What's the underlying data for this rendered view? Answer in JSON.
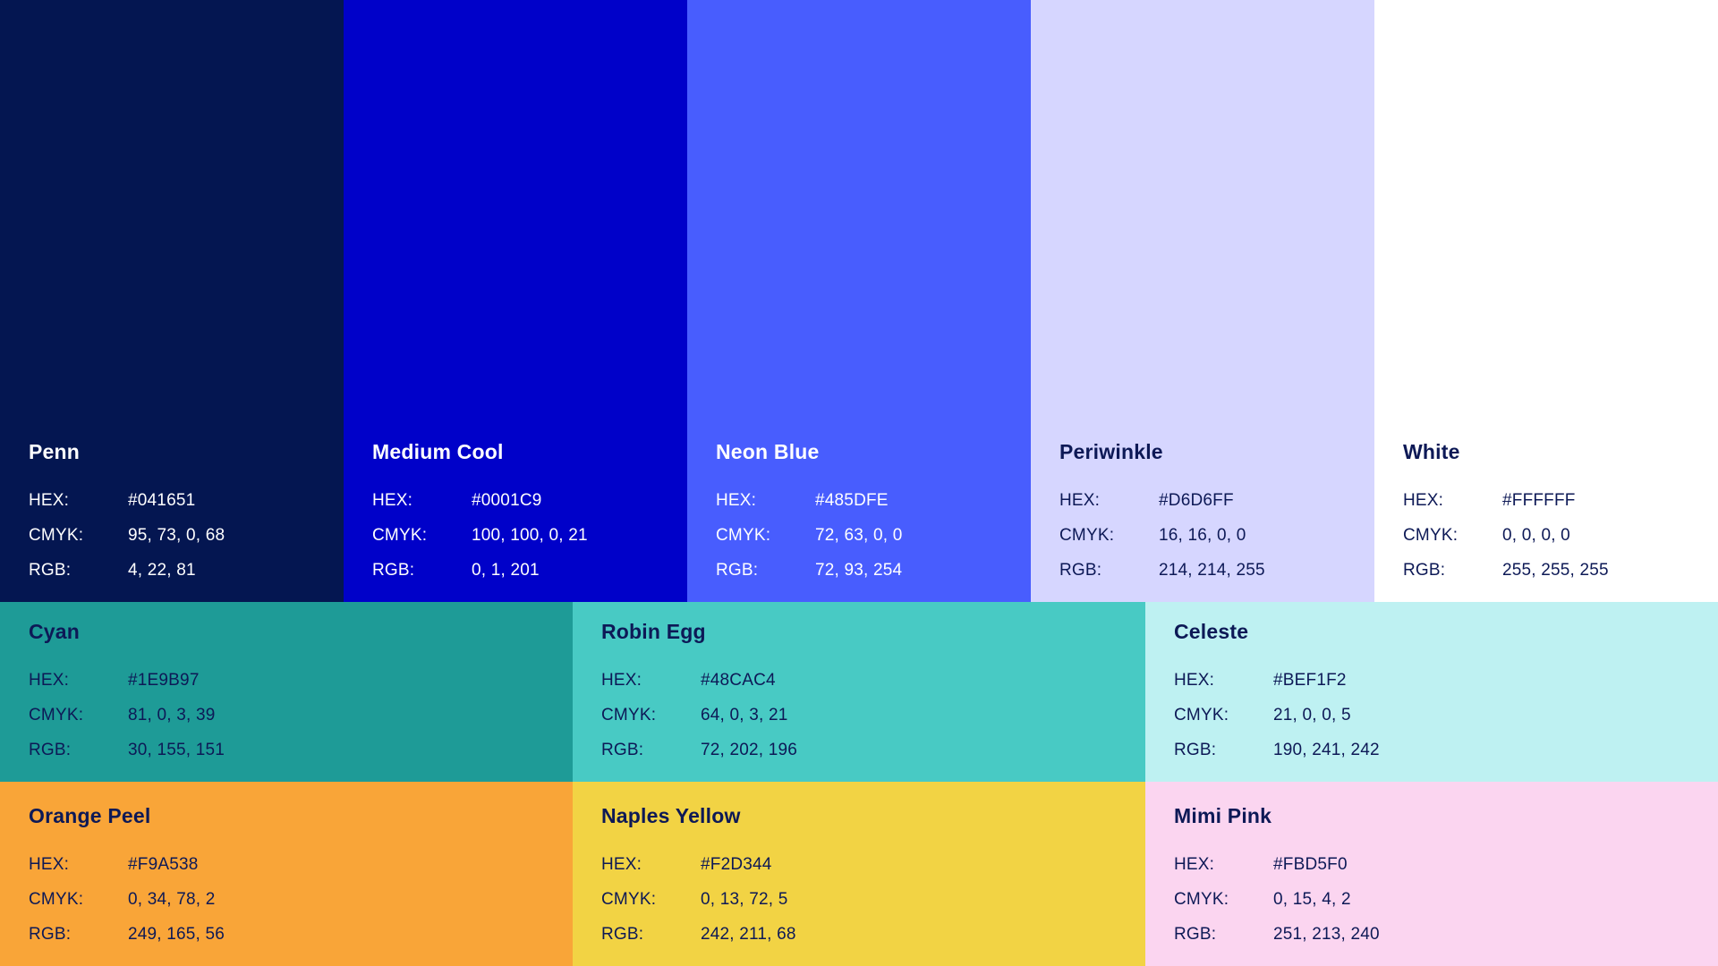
{
  "labels": {
    "hex": "HEX:",
    "cmyk": "CMYK:",
    "rgb": "RGB:"
  },
  "rows": [
    {
      "tiles": [
        {
          "name": "Penn",
          "hex": "#041651",
          "cmyk": "95, 73, 0, 68",
          "rgb": "4, 22, 81",
          "bg": "#041651",
          "text": "#FFFFFF"
        },
        {
          "name": "Medium Cool",
          "hex": "#0001C9",
          "cmyk": "100, 100, 0, 21",
          "rgb": "0, 1, 201",
          "bg": "#0001C9",
          "text": "#FFFFFF"
        },
        {
          "name": "Neon Blue",
          "hex": "#485DFE",
          "cmyk": "72, 63, 0, 0",
          "rgb": "72, 93, 254",
          "bg": "#485DFE",
          "text": "#FFFFFF"
        },
        {
          "name": "Periwinkle",
          "hex": "#D6D6FF",
          "cmyk": "16, 16, 0, 0",
          "rgb": "214, 214, 255",
          "bg": "#D6D6FF",
          "text": "#0D1956"
        },
        {
          "name": "White",
          "hex": "#FFFFFF",
          "cmyk": "0, 0, 0, 0",
          "rgb": "255, 255, 255",
          "bg": "#FFFFFF",
          "text": "#0D1956"
        }
      ]
    },
    {
      "tiles": [
        {
          "name": "Cyan",
          "hex": "#1E9B97",
          "cmyk": "81, 0, 3, 39",
          "rgb": "30, 155, 151",
          "bg": "#1E9B97",
          "text": "#0D1956"
        },
        {
          "name": "Robin Egg",
          "hex": "#48CAC4",
          "cmyk": "64, 0, 3, 21",
          "rgb": "72, 202, 196",
          "bg": "#48CAC4",
          "text": "#0D1956"
        },
        {
          "name": "Celeste",
          "hex": "#BEF1F2",
          "cmyk": "21, 0, 0, 5",
          "rgb": "190, 241, 242",
          "bg": "#BEF1F2",
          "text": "#0D1956"
        }
      ]
    },
    {
      "tiles": [
        {
          "name": "Orange Peel",
          "hex": "#F9A538",
          "cmyk": "0, 34, 78, 2",
          "rgb": "249, 165, 56",
          "bg": "#F9A538",
          "text": "#0D1956"
        },
        {
          "name": "Naples Yellow",
          "hex": "#F2D344",
          "cmyk": "0, 13, 72, 5",
          "rgb": "242, 211, 68",
          "bg": "#F2D344",
          "text": "#0D1956"
        },
        {
          "name": "Mimi Pink",
          "hex": "#FBD5F0",
          "cmyk": "0, 15, 4, 2",
          "rgb": "251, 213, 240",
          "bg": "#FBD5F0",
          "text": "#0D1956"
        }
      ]
    }
  ]
}
